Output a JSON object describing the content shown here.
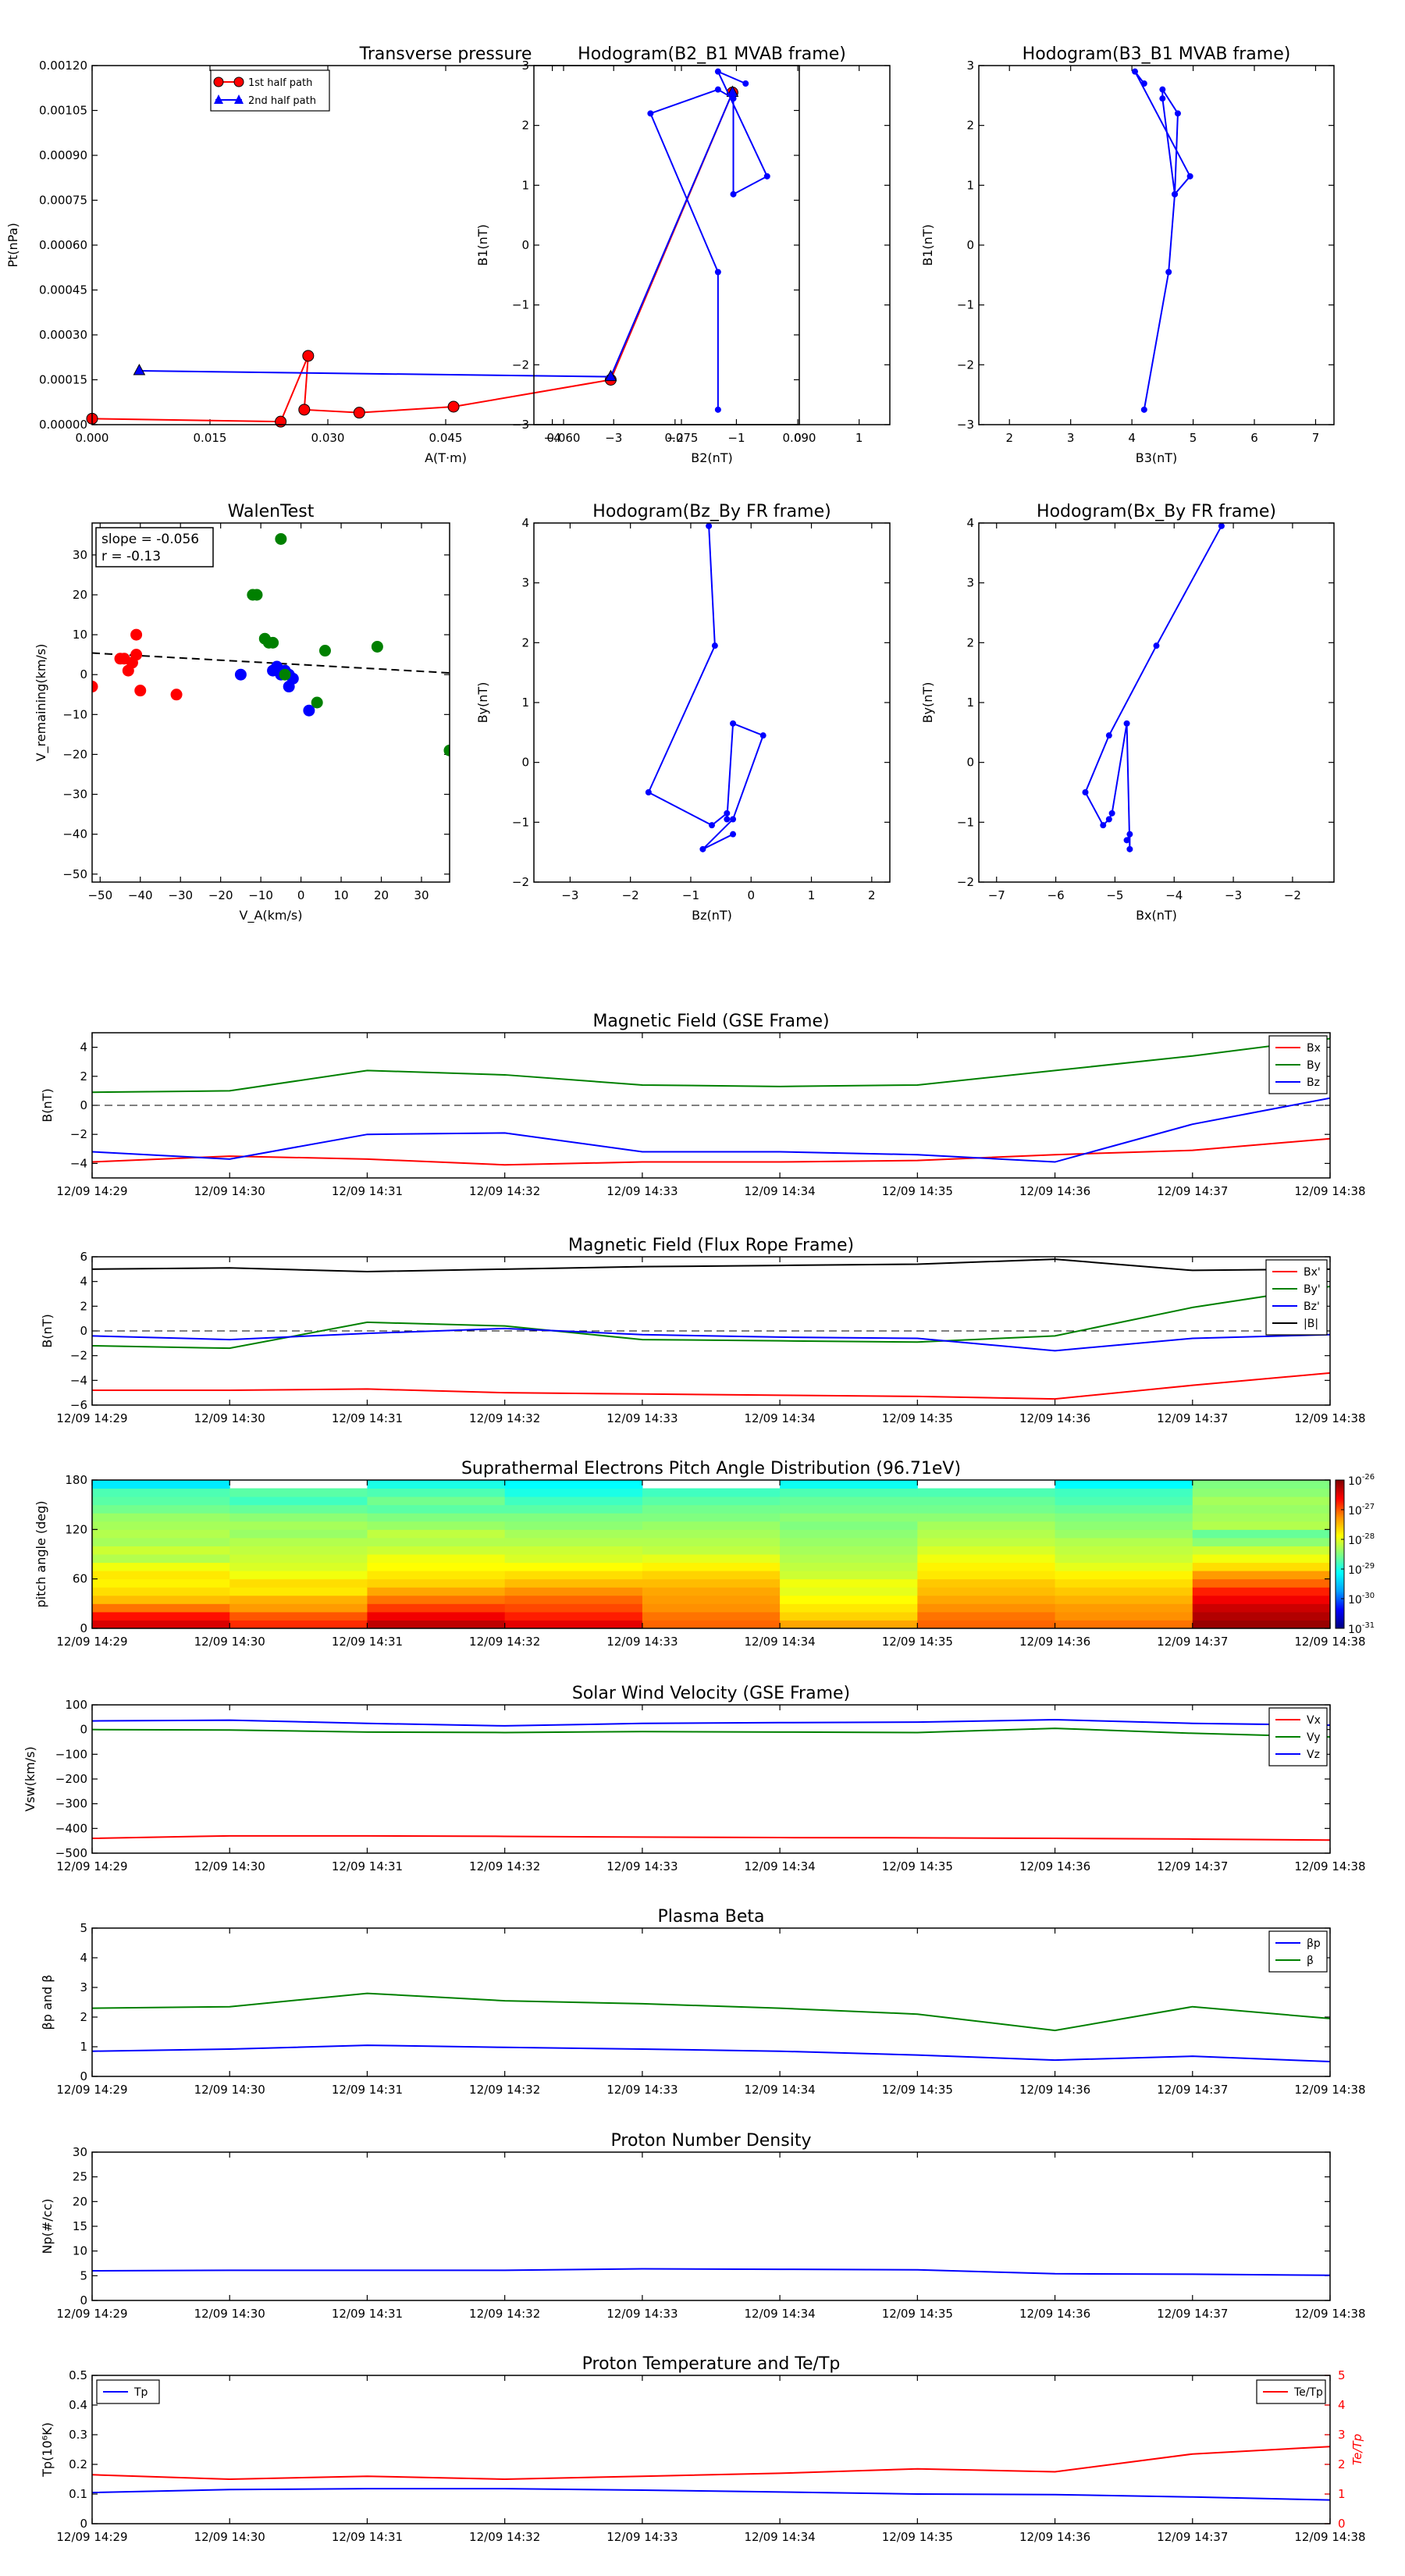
{
  "figure": {
    "background": "#ffffff",
    "axis_color": "#000000"
  },
  "times": [
    "12/09 14:29",
    "12/09 14:30",
    "12/09 14:31",
    "12/09 14:32",
    "12/09 14:33",
    "12/09 14:34",
    "12/09 14:35",
    "12/09 14:36",
    "12/09 14:37",
    "12/09 14:38"
  ],
  "chart_data": [
    {
      "id": "tp",
      "type": "line",
      "title": "Transverse pressure",
      "xlabel": "A(T·m)",
      "ylabel": "Pt(nPa)",
      "xlim": [
        0,
        0.09
      ],
      "ylim": [
        0,
        0.0012
      ],
      "xticks": [
        0,
        0.015,
        0.03,
        0.045,
        0.06,
        0.075,
        0.09
      ],
      "xtick_labels": [
        "0.000",
        "0.015",
        "0.030",
        "0.045",
        "0.060",
        "0.075",
        "0.090"
      ],
      "yticks": [
        0,
        0.00015,
        0.0003,
        0.00045,
        0.0006,
        0.00075,
        0.0009,
        0.00105,
        0.0012
      ],
      "ytick_labels": [
        "0.00000",
        "0.00015",
        "0.00030",
        "0.00045",
        "0.00060",
        "0.00075",
        "0.00090",
        "0.00105",
        "0.00120"
      ],
      "legend_position": "top-center",
      "series": [
        {
          "name": "1st half path",
          "color": "#ff0000",
          "marker": "circle",
          "x": [
            0.0,
            0.024,
            0.0275,
            0.027,
            0.034,
            0.046,
            0.066,
            0.0815
          ],
          "y": [
            2e-05,
            1e-05,
            0.00023,
            5e-05,
            4e-05,
            6e-05,
            0.00015,
            0.00111
          ]
        },
        {
          "name": "2nd half path",
          "color": "#0000ff",
          "marker": "triangle",
          "x": [
            0.0815,
            0.066,
            0.006
          ],
          "y": [
            0.00111,
            0.00016,
            0.00018
          ]
        }
      ]
    },
    {
      "id": "h21",
      "type": "line",
      "title": "Hodogram(B2_B1 MVAB frame)",
      "xlabel": "B2(nT)",
      "ylabel": "B1(nT)",
      "xlim": [
        -4.3,
        1.5
      ],
      "ylim": [
        -3,
        3
      ],
      "xticks": [
        -4,
        -3,
        -2,
        -1,
        0,
        1
      ],
      "yticks": [
        -3,
        -2,
        -1,
        0,
        1,
        2,
        3
      ],
      "series": [
        {
          "color": "#0000ff",
          "marker": "dot",
          "x": [
            -1.3,
            -1.3,
            -2.4,
            -1.3,
            -1.05,
            -1.05,
            -0.5,
            -1.3,
            -0.85
          ],
          "y": [
            -2.75,
            -0.45,
            2.2,
            2.6,
            2.45,
            0.85,
            1.15,
            2.9,
            2.7
          ]
        }
      ]
    },
    {
      "id": "h31",
      "type": "line",
      "title": "Hodogram(B3_B1 MVAB frame)",
      "xlabel": "B3(nT)",
      "ylabel": "B1(nT)",
      "xlim": [
        1.5,
        7.3
      ],
      "ylim": [
        -3,
        3
      ],
      "xticks": [
        2,
        3,
        4,
        5,
        6,
        7
      ],
      "yticks": [
        -3,
        -2,
        -1,
        0,
        1,
        2,
        3
      ],
      "series": [
        {
          "color": "#0000ff",
          "marker": "dot",
          "x": [
            4.2,
            4.6,
            4.7,
            4.5,
            4.5,
            4.75,
            4.7,
            4.95,
            4.05,
            4.2
          ],
          "y": [
            -2.75,
            -0.45,
            0.85,
            2.45,
            2.6,
            2.2,
            0.85,
            1.15,
            2.9,
            2.7
          ]
        }
      ]
    },
    {
      "id": "walen",
      "type": "scatter",
      "title": "WalenTest",
      "xlabel": "V_A(km/s)",
      "ylabel": "V_remaining(km/s)",
      "xlim": [
        -52,
        37
      ],
      "ylim": [
        -52,
        38
      ],
      "xticks": [
        -50,
        -40,
        -30,
        -20,
        -10,
        0,
        10,
        20,
        30
      ],
      "yticks": [
        -50,
        -40,
        -30,
        -20,
        -10,
        0,
        10,
        20,
        30
      ],
      "annotations": [
        "slope = -0.056",
        "r = -0.13"
      ],
      "fit_line": {
        "slope": -0.056,
        "intercept": 2.5,
        "color": "#000000",
        "style": "dashed"
      },
      "series": [
        {
          "color": "#ff0000",
          "x": [
            -52,
            -45,
            -44,
            -43,
            -42,
            -41,
            -41,
            -40,
            -31
          ],
          "y": [
            -3,
            4,
            4,
            1,
            3,
            5,
            10,
            -4,
            -5
          ]
        },
        {
          "color": "#0000ff",
          "x": [
            -15,
            -7,
            -6,
            -5,
            -4,
            -3,
            -3,
            -2,
            2
          ],
          "y": [
            0,
            1,
            2,
            0,
            1,
            -3,
            0,
            -1,
            -9
          ]
        },
        {
          "color": "#008000",
          "x": [
            -12,
            -11,
            -9,
            -8,
            -7,
            -5,
            -4,
            4,
            6,
            19,
            37
          ],
          "y": [
            20,
            20,
            9,
            8,
            8,
            34,
            0,
            -7,
            6,
            7,
            -19
          ]
        }
      ]
    },
    {
      "id": "hbzby",
      "type": "line",
      "title": "Hodogram(Bz_By FR frame)",
      "xlabel": "Bz(nT)",
      "ylabel": "By(nT)",
      "xlim": [
        -3.6,
        2.3
      ],
      "ylim": [
        -2,
        4
      ],
      "xticks": [
        -3,
        -2,
        -1,
        0,
        1,
        2
      ],
      "yticks": [
        -2,
        -1,
        0,
        1,
        2,
        3,
        4
      ],
      "series": [
        {
          "color": "#0000ff",
          "marker": "dot",
          "x": [
            -0.7,
            -0.6,
            -1.7,
            -0.65,
            -0.4,
            -0.4,
            -0.3,
            0.2,
            -0.3,
            -0.8,
            -0.3
          ],
          "y": [
            3.95,
            1.95,
            -0.5,
            -1.05,
            -0.85,
            -0.95,
            0.65,
            0.45,
            -0.95,
            -1.45,
            -1.2
          ]
        }
      ]
    },
    {
      "id": "hbxby",
      "type": "line",
      "title": "Hodogram(Bx_By FR frame)",
      "xlabel": "Bx(nT)",
      "ylabel": "By(nT)",
      "xlim": [
        -7.3,
        -1.3
      ],
      "ylim": [
        -2,
        4
      ],
      "xticks": [
        -7,
        -6,
        -5,
        -4,
        -3,
        -2
      ],
      "yticks": [
        -2,
        -1,
        0,
        1,
        2,
        3,
        4
      ],
      "series": [
        {
          "color": "#0000ff",
          "marker": "dot",
          "x": [
            -3.2,
            -4.3,
            -5.1,
            -5.5,
            -5.2,
            -5.1,
            -5.05,
            -4.8,
            -4.75,
            -4.75,
            -4.8
          ],
          "y": [
            3.95,
            1.95,
            0.45,
            -0.5,
            -1.05,
            -0.95,
            -0.85,
            0.65,
            -1.45,
            -1.2,
            -1.3
          ]
        }
      ]
    },
    {
      "id": "magf",
      "type": "line",
      "title": "Magnetic Field (GSE Frame)",
      "ylabel": "B(nT)",
      "ylim": [
        -5,
        5
      ],
      "yticks": [
        -4,
        -2,
        0,
        2,
        4
      ],
      "zero_line": true,
      "legend_position": "top-right",
      "series": [
        {
          "name": "Bx",
          "color": "#ff0000",
          "values": [
            -3.9,
            -3.5,
            -3.7,
            -4.1,
            -3.9,
            -3.9,
            -3.8,
            -3.4,
            -3.1,
            -2.3
          ]
        },
        {
          "name": "By",
          "color": "#008000",
          "values": [
            0.9,
            1.0,
            2.4,
            2.1,
            1.4,
            1.3,
            1.4,
            2.4,
            3.4,
            4.6
          ]
        },
        {
          "name": "Bz",
          "color": "#0000ff",
          "values": [
            -3.2,
            -3.7,
            -2.0,
            -1.9,
            -3.2,
            -3.2,
            -3.4,
            -3.9,
            -1.3,
            0.5
          ]
        }
      ]
    },
    {
      "id": "magfr",
      "type": "line",
      "title": "Magnetic Field (Flux Rope Frame)",
      "ylabel": "B(nT)",
      "ylim": [
        -6,
        6
      ],
      "yticks": [
        -6,
        -4,
        -2,
        0,
        2,
        4,
        6
      ],
      "zero_line": true,
      "legend_position": "top-right",
      "series": [
        {
          "name": "Bx'",
          "color": "#ff0000",
          "values": [
            -4.8,
            -4.8,
            -4.7,
            -5.0,
            -5.1,
            -5.2,
            -5.3,
            -5.5,
            -4.4,
            -3.4
          ]
        },
        {
          "name": "By'",
          "color": "#008000",
          "values": [
            -1.2,
            -1.4,
            0.7,
            0.4,
            -0.7,
            -0.8,
            -0.9,
            -0.4,
            1.9,
            3.6
          ]
        },
        {
          "name": "Bz'",
          "color": "#0000ff",
          "values": [
            -0.4,
            -0.7,
            -0.2,
            0.2,
            -0.3,
            -0.5,
            -0.6,
            -1.6,
            -0.6,
            -0.3
          ]
        },
        {
          "name": "|B|",
          "color": "#000000",
          "values": [
            5.0,
            5.1,
            4.8,
            5.0,
            5.2,
            5.3,
            5.4,
            5.8,
            4.9,
            5.0
          ]
        }
      ]
    },
    {
      "id": "pad",
      "type": "heatmap",
      "title": "Suprathermal Electrons Pitch Angle Distribution (96.71eV)",
      "ylabel": "pitch angle (deg)",
      "ylim": [
        0,
        180
      ],
      "yticks": [
        0,
        60,
        120,
        180
      ],
      "colorbar": {
        "scale": "log",
        "ticks": [
          "10-31",
          "10-30",
          "10-29",
          "10-28",
          "10-27",
          "10-26"
        ],
        "colors": [
          "#00007f",
          "#0000ff",
          "#00a0ff",
          "#00ffff",
          "#80ff80",
          "#ffff00",
          "#ff9000",
          "#ff0000",
          "#7f0000"
        ]
      },
      "columns": 9,
      "rows": 18,
      "levels": [
        [
          7.3,
          6.9,
          6.2,
          5.6,
          5.3,
          5.1,
          5.2,
          4.9,
          4.4,
          4.6,
          4.3,
          4.4,
          4.3,
          4.2,
          3.9,
          3.7,
          3.6,
          2.8
        ],
        [
          6.7,
          6.4,
          5.9,
          5.7,
          5.2,
          5.3,
          4.9,
          4.7,
          4.6,
          4.5,
          4.4,
          4.2,
          4.3,
          4.1,
          3.8,
          3.5,
          3.7,
          -1
        ],
        [
          7.5,
          7.1,
          6.6,
          6.2,
          5.8,
          5.4,
          5.2,
          5.0,
          4.9,
          4.6,
          4.4,
          4.5,
          4.2,
          4.0,
          3.7,
          3.9,
          3.6,
          3.2
        ],
        [
          7.2,
          6.8,
          6.5,
          6.3,
          6.0,
          5.6,
          5.3,
          5.0,
          4.7,
          4.6,
          4.4,
          4.3,
          4.1,
          4.0,
          3.7,
          3.5,
          3.2,
          3.0
        ],
        [
          6.3,
          6.2,
          6.0,
          5.9,
          5.8,
          5.6,
          5.4,
          5.1,
          4.8,
          4.5,
          4.4,
          4.3,
          4.2,
          4.0,
          3.9,
          3.7,
          3.5,
          -1
        ],
        [
          5.8,
          5.4,
          5.2,
          5.0,
          4.8,
          4.9,
          4.6,
          4.5,
          4.4,
          4.3,
          4.2,
          4.1,
          4.0,
          4.1,
          3.9,
          3.8,
          3.6,
          3.1
        ],
        [
          6.3,
          6.2,
          6.0,
          5.8,
          5.6,
          5.5,
          5.2,
          5.1,
          4.9,
          4.7,
          4.5,
          4.4,
          4.3,
          4.1,
          3.9,
          3.8,
          3.6,
          -1
        ],
        [
          6.2,
          6.0,
          5.9,
          5.7,
          5.5,
          5.3,
          5.1,
          4.8,
          4.6,
          4.5,
          4.4,
          4.2,
          4.1,
          4.0,
          3.8,
          3.6,
          3.5,
          3.0
        ],
        [
          7.8,
          7.6,
          7.4,
          7.1,
          6.8,
          6.3,
          5.9,
          5.3,
          4.9,
          4.6,
          4.1,
          3.8,
          4.4,
          4.3,
          4.2,
          4.3,
          4.1,
          4.0
        ]
      ]
    },
    {
      "id": "vsw",
      "type": "line",
      "title": "Solar Wind Velocity (GSE Frame)",
      "ylabel": "Vsw(km/s)",
      "ylim": [
        -500,
        100
      ],
      "yticks": [
        -500,
        -400,
        -300,
        -200,
        -100,
        0,
        100
      ],
      "legend_position": "top-right",
      "series": [
        {
          "name": "Vx",
          "color": "#ff0000",
          "values": [
            -440,
            -430,
            -430,
            -432,
            -435,
            -437,
            -438,
            -440,
            -443,
            -447
          ]
        },
        {
          "name": "Vy",
          "color": "#008000",
          "values": [
            0,
            -2,
            -10,
            -12,
            -8,
            -10,
            -12,
            5,
            -15,
            -30
          ]
        },
        {
          "name": "Vz",
          "color": "#0000ff",
          "values": [
            35,
            38,
            25,
            15,
            25,
            28,
            30,
            40,
            25,
            18
          ]
        }
      ]
    },
    {
      "id": "beta",
      "type": "line",
      "title": "Plasma Beta",
      "ylabel": "βp and β",
      "ylim": [
        0,
        5
      ],
      "yticks": [
        0,
        1,
        2,
        3,
        4,
        5
      ],
      "legend_position": "top-right",
      "series": [
        {
          "name": "βp",
          "color": "#0000ff",
          "values": [
            0.85,
            0.92,
            1.05,
            0.98,
            0.92,
            0.85,
            0.72,
            0.55,
            0.68,
            0.5
          ]
        },
        {
          "name": "β",
          "color": "#008000",
          "values": [
            2.3,
            2.35,
            2.8,
            2.55,
            2.45,
            2.3,
            2.1,
            1.55,
            2.35,
            1.95
          ]
        }
      ]
    },
    {
      "id": "np",
      "type": "line",
      "title": "Proton Number Density",
      "ylabel": "Np(#/cc)",
      "ylim": [
        0,
        30
      ],
      "yticks": [
        0,
        5,
        10,
        15,
        20,
        25,
        30
      ],
      "series": [
        {
          "color": "#0000ff",
          "values": [
            6.0,
            6.1,
            6.1,
            6.1,
            6.4,
            6.3,
            6.2,
            5.4,
            5.3,
            5.1
          ]
        }
      ]
    },
    {
      "id": "temp",
      "type": "line",
      "title": "Proton Temperature and Te/Tp",
      "ylabel": "Tp(10⁶K)",
      "ylim": [
        0,
        0.5
      ],
      "yticks": [
        0,
        0.1,
        0.2,
        0.3,
        0.4,
        0.5
      ],
      "y2label": "Te/Tp",
      "y2lim": [
        0,
        5
      ],
      "y2ticks": [
        0,
        1,
        2,
        3,
        4,
        5
      ],
      "series": [
        {
          "name": "Tp",
          "color": "#0000ff",
          "axis": "left",
          "values": [
            0.105,
            0.115,
            0.118,
            0.118,
            0.113,
            0.107,
            0.1,
            0.098,
            0.09,
            0.08
          ]
        },
        {
          "name": "Te/Tp",
          "color": "#ff0000",
          "axis": "right",
          "values": [
            1.65,
            1.5,
            1.6,
            1.5,
            1.6,
            1.7,
            1.85,
            1.75,
            2.35,
            2.6
          ]
        }
      ]
    }
  ]
}
